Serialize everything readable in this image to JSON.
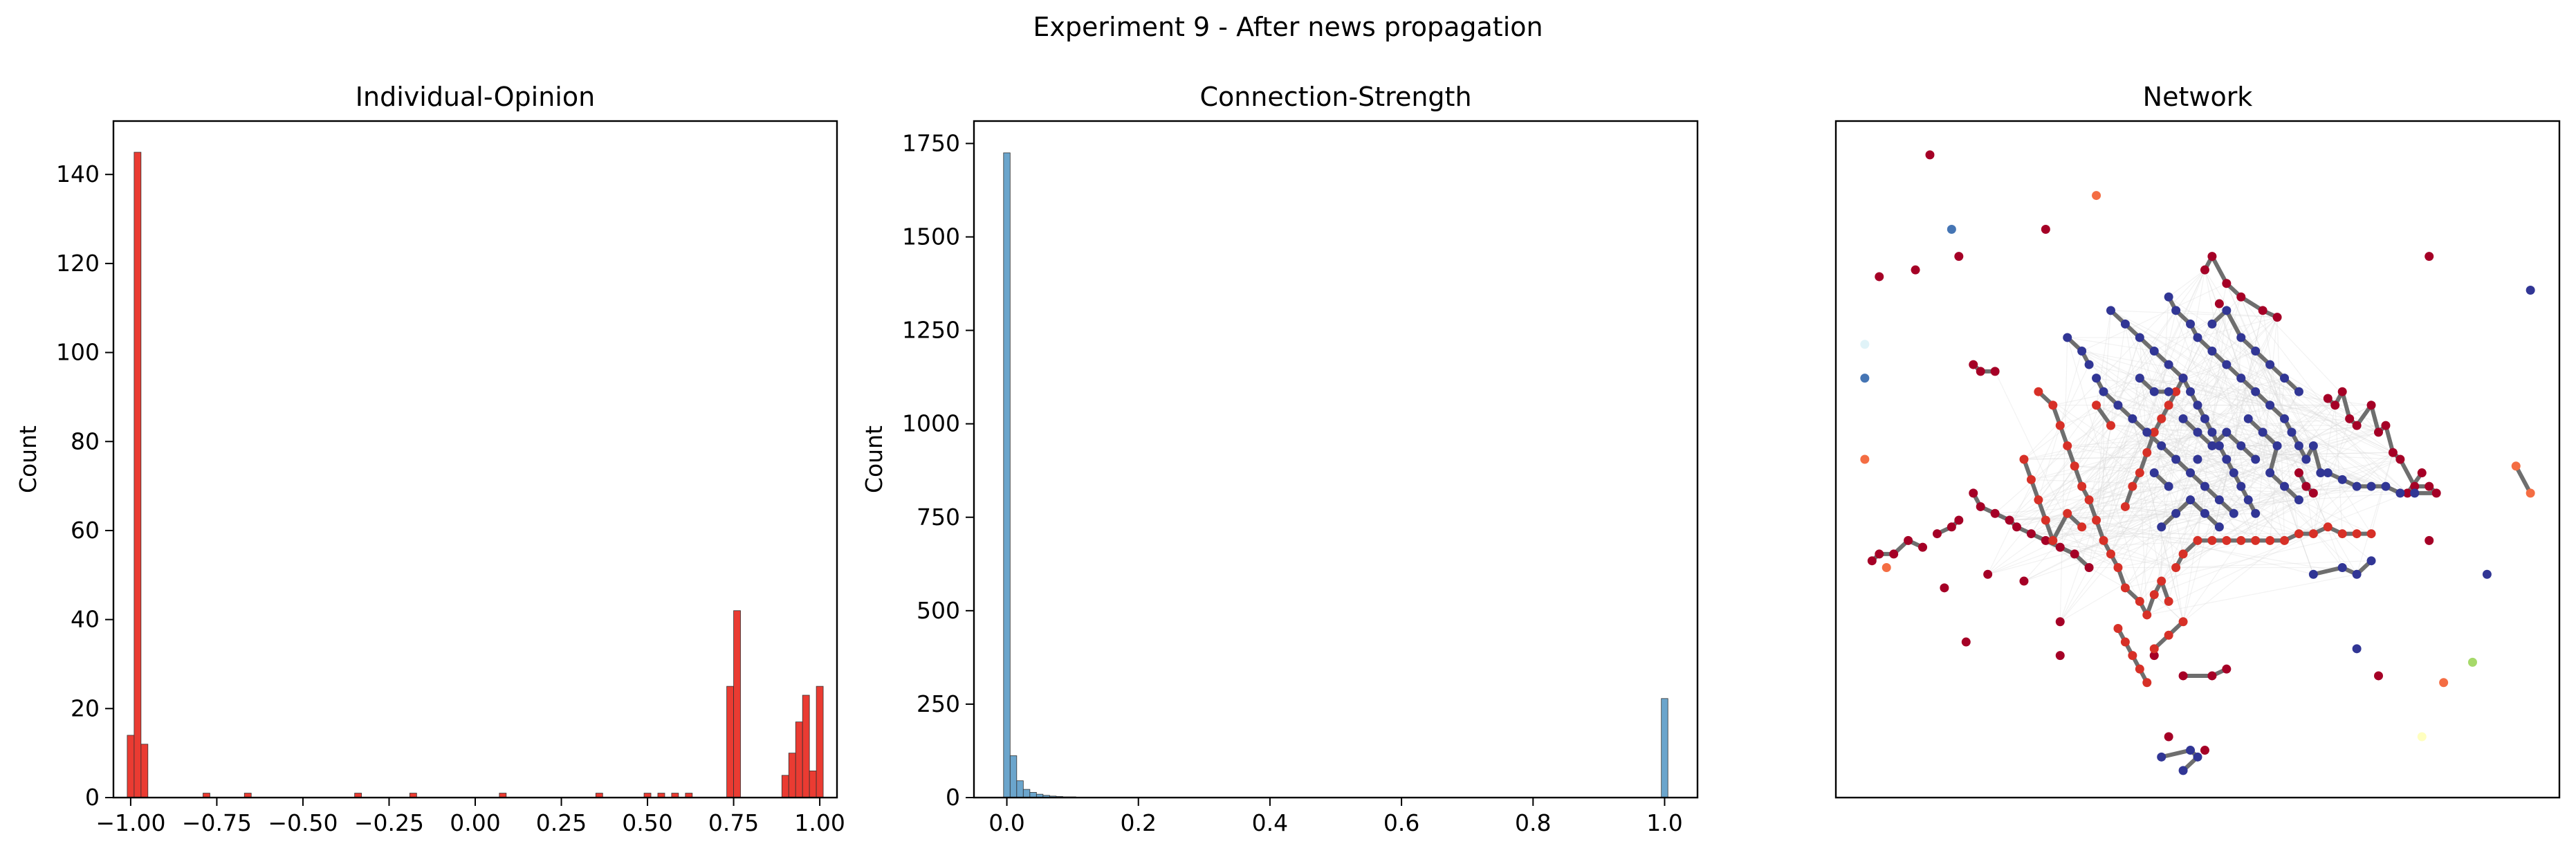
{
  "figure": {
    "suptitle": "Experiment 9 - After news propagation"
  },
  "chart_data": [
    {
      "type": "bar",
      "title": "Individual-Opinion",
      "xlabel": "",
      "ylabel": "Count",
      "xlim": [
        -1.05,
        1.05
      ],
      "ylim": [
        0,
        152
      ],
      "xticks": [
        -1.0,
        -0.75,
        -0.5,
        -0.25,
        0.0,
        0.25,
        0.5,
        0.75,
        1.0
      ],
      "xtick_labels": [
        "−1.00",
        "−0.75",
        "−0.50",
        "−0.25",
        "0.00",
        "0.25",
        "0.50",
        "0.75",
        "1.00"
      ],
      "yticks": [
        0,
        20,
        40,
        60,
        80,
        100,
        120,
        140
      ],
      "ytick_labels": [
        "0",
        "20",
        "40",
        "60",
        "80",
        "100",
        "120",
        "140"
      ],
      "bin_width": 0.02,
      "color": "#e8261c",
      "bins": [
        {
          "x": -1.0,
          "count": 14
        },
        {
          "x": -0.98,
          "count": 145
        },
        {
          "x": -0.96,
          "count": 12
        },
        {
          "x": -0.78,
          "count": 1
        },
        {
          "x": -0.66,
          "count": 1
        },
        {
          "x": -0.34,
          "count": 1
        },
        {
          "x": -0.18,
          "count": 1
        },
        {
          "x": 0.08,
          "count": 1
        },
        {
          "x": 0.36,
          "count": 1
        },
        {
          "x": 0.5,
          "count": 1
        },
        {
          "x": 0.54,
          "count": 1
        },
        {
          "x": 0.58,
          "count": 1
        },
        {
          "x": 0.62,
          "count": 1
        },
        {
          "x": 0.74,
          "count": 25
        },
        {
          "x": 0.76,
          "count": 42
        },
        {
          "x": 0.9,
          "count": 5
        },
        {
          "x": 0.92,
          "count": 10
        },
        {
          "x": 0.94,
          "count": 17
        },
        {
          "x": 0.96,
          "count": 23
        },
        {
          "x": 0.98,
          "count": 6
        },
        {
          "x": 1.0,
          "count": 25
        }
      ]
    },
    {
      "type": "bar",
      "title": "Connection-Strength",
      "xlabel": "",
      "ylabel": "Count",
      "xlim": [
        -0.05,
        1.05
      ],
      "ylim": [
        0,
        1810
      ],
      "xticks": [
        0.0,
        0.2,
        0.4,
        0.6,
        0.8,
        1.0
      ],
      "xtick_labels": [
        "0.0",
        "0.2",
        "0.4",
        "0.6",
        "0.8",
        "1.0"
      ],
      "yticks": [
        0,
        250,
        500,
        750,
        1000,
        1250,
        1500,
        1750
      ],
      "ytick_labels": [
        "0",
        "250",
        "500",
        "750",
        "1000",
        "1250",
        "1500",
        "1750"
      ],
      "bin_width": 0.01,
      "color": "#5b9bc7",
      "bins": [
        {
          "x": 0.0,
          "count": 1725
        },
        {
          "x": 0.01,
          "count": 112
        },
        {
          "x": 0.02,
          "count": 45
        },
        {
          "x": 0.03,
          "count": 22
        },
        {
          "x": 0.04,
          "count": 14
        },
        {
          "x": 0.05,
          "count": 9
        },
        {
          "x": 0.06,
          "count": 6
        },
        {
          "x": 0.07,
          "count": 4
        },
        {
          "x": 0.08,
          "count": 3
        },
        {
          "x": 0.09,
          "count": 2
        },
        {
          "x": 0.1,
          "count": 2
        },
        {
          "x": 0.11,
          "count": 1
        },
        {
          "x": 0.12,
          "count": 1
        },
        {
          "x": 1.0,
          "count": 265
        }
      ]
    },
    {
      "type": "scatter",
      "title": "Network",
      "xlabel": "",
      "ylabel": "",
      "xlim": [
        0,
        100
      ],
      "ylim": [
        0,
        100
      ],
      "xticks": [],
      "yticks": [],
      "note_axes": "node layout positions in network-plot units",
      "series": [
        {
          "name": "",
          "color": "#a50026",
          "points": [
            [
              13,
              95
            ],
            [
              29,
              84
            ],
            [
              11,
              78
            ],
            [
              17,
              80
            ],
            [
              6,
              77
            ],
            [
              51,
              78
            ],
            [
              52,
              80
            ],
            [
              54,
              76
            ],
            [
              56,
              74
            ],
            [
              59,
              72
            ],
            [
              61,
              71
            ],
            [
              53,
              73
            ],
            [
              19,
              64
            ],
            [
              20,
              63
            ],
            [
              22,
              63
            ],
            [
              68,
              59
            ],
            [
              69,
              58
            ],
            [
              70,
              60
            ],
            [
              71,
              56
            ],
            [
              72,
              55
            ],
            [
              74,
              58
            ],
            [
              75,
              54
            ],
            [
              76,
              55
            ],
            [
              77,
              51
            ],
            [
              78,
              50
            ],
            [
              80,
              46
            ],
            [
              82,
              46
            ],
            [
              83,
              45
            ],
            [
              79,
              45
            ],
            [
              81,
              48
            ],
            [
              64,
              48
            ],
            [
              65,
              46
            ],
            [
              66,
              45
            ],
            [
              14,
              39
            ],
            [
              16,
              40
            ],
            [
              17,
              41
            ],
            [
              5,
              35
            ],
            [
              6,
              36
            ],
            [
              8,
              36
            ],
            [
              10,
              38
            ],
            [
              12,
              37
            ],
            [
              19,
              45
            ],
            [
              20,
              43
            ],
            [
              22,
              42
            ],
            [
              24,
              41
            ],
            [
              25,
              40
            ],
            [
              27,
              39
            ],
            [
              29,
              38
            ],
            [
              31,
              37
            ],
            [
              33,
              36
            ],
            [
              35,
              34
            ],
            [
              15,
              31
            ],
            [
              21,
              33
            ],
            [
              26,
              32
            ],
            [
              18,
              23
            ],
            [
              31,
              21
            ],
            [
              44,
              21
            ],
            [
              48,
              18
            ],
            [
              52,
              18
            ],
            [
              54,
              19
            ],
            [
              75,
              18
            ],
            [
              82,
              80
            ],
            [
              82,
              38
            ],
            [
              31,
              26
            ],
            [
              46,
              9
            ],
            [
              51,
              7
            ]
          ]
        },
        {
          "name": "",
          "color": "#d73027",
          "points": [
            [
              28,
              60
            ],
            [
              30,
              58
            ],
            [
              31,
              55
            ],
            [
              32,
              52
            ],
            [
              33,
              49
            ],
            [
              34,
              46
            ],
            [
              35,
              44
            ],
            [
              36,
              41
            ],
            [
              37,
              38
            ],
            [
              38,
              36
            ],
            [
              39,
              34
            ],
            [
              40,
              31
            ],
            [
              42,
              29
            ],
            [
              43,
              27
            ],
            [
              44,
              30
            ],
            [
              45,
              32
            ],
            [
              46,
              29
            ],
            [
              47,
              34
            ],
            [
              48,
              36
            ],
            [
              50,
              38
            ],
            [
              52,
              38
            ],
            [
              54,
              38
            ],
            [
              56,
              38
            ],
            [
              58,
              38
            ],
            [
              60,
              38
            ],
            [
              62,
              38
            ],
            [
              64,
              39
            ],
            [
              66,
              39
            ],
            [
              68,
              40
            ],
            [
              70,
              39
            ],
            [
              72,
              39
            ],
            [
              74,
              39
            ],
            [
              40,
              43
            ],
            [
              41,
              46
            ],
            [
              42,
              48
            ],
            [
              43,
              51
            ],
            [
              44,
              54
            ],
            [
              45,
              56
            ],
            [
              46,
              58
            ],
            [
              47,
              60
            ],
            [
              48,
              62
            ],
            [
              36,
              58
            ],
            [
              38,
              55
            ],
            [
              26,
              50
            ],
            [
              27,
              47
            ],
            [
              28,
              44
            ],
            [
              29,
              41
            ],
            [
              30,
              38
            ],
            [
              32,
              42
            ],
            [
              34,
              40
            ],
            [
              39,
              25
            ],
            [
              40,
              23
            ],
            [
              41,
              21
            ],
            [
              42,
              19
            ],
            [
              43,
              17
            ],
            [
              44,
              22
            ],
            [
              46,
              24
            ],
            [
              48,
              26
            ]
          ]
        },
        {
          "name": "",
          "color": "#313695",
          "points": [
            [
              38,
              72
            ],
            [
              40,
              70
            ],
            [
              42,
              68
            ],
            [
              44,
              66
            ],
            [
              46,
              64
            ],
            [
              48,
              62
            ],
            [
              49,
              60
            ],
            [
              50,
              58
            ],
            [
              51,
              56
            ],
            [
              52,
              54
            ],
            [
              53,
              52
            ],
            [
              54,
              50
            ],
            [
              55,
              48
            ],
            [
              56,
              46
            ],
            [
              57,
              44
            ],
            [
              58,
              42
            ],
            [
              46,
              74
            ],
            [
              47,
              72
            ],
            [
              49,
              70
            ],
            [
              50,
              68
            ],
            [
              52,
              66
            ],
            [
              54,
              64
            ],
            [
              56,
              62
            ],
            [
              58,
              60
            ],
            [
              60,
              58
            ],
            [
              62,
              56
            ],
            [
              63,
              54
            ],
            [
              64,
              52
            ],
            [
              65,
              50
            ],
            [
              66,
              52
            ],
            [
              67,
              48
            ],
            [
              68,
              48
            ],
            [
              70,
              47
            ],
            [
              72,
              46
            ],
            [
              74,
              46
            ],
            [
              76,
              46
            ],
            [
              78,
              45
            ],
            [
              80,
              45
            ],
            [
              36,
              62
            ],
            [
              37,
              60
            ],
            [
              39,
              58
            ],
            [
              41,
              56
            ],
            [
              43,
              54
            ],
            [
              45,
              52
            ],
            [
              47,
              50
            ],
            [
              49,
              48
            ],
            [
              51,
              46
            ],
            [
              53,
              44
            ],
            [
              55,
              42
            ],
            [
              45,
              40
            ],
            [
              47,
              42
            ],
            [
              49,
              44
            ],
            [
              51,
              42
            ],
            [
              53,
              40
            ],
            [
              57,
              56
            ],
            [
              59,
              54
            ],
            [
              61,
              52
            ],
            [
              60,
              48
            ],
            [
              62,
              46
            ],
            [
              64,
              44
            ],
            [
              48,
              56
            ],
            [
              50,
              54
            ],
            [
              52,
              52
            ],
            [
              54,
              54
            ],
            [
              56,
              52
            ],
            [
              58,
              50
            ],
            [
              42,
              62
            ],
            [
              44,
              60
            ],
            [
              46,
              60
            ],
            [
              52,
              70
            ],
            [
              54,
              72
            ],
            [
              56,
              68
            ],
            [
              58,
              66
            ],
            [
              60,
              64
            ],
            [
              62,
              62
            ],
            [
              64,
              60
            ],
            [
              44,
              48
            ],
            [
              46,
              46
            ],
            [
              50,
              50
            ],
            [
              32,
              68
            ],
            [
              34,
              66
            ],
            [
              35,
              64
            ],
            [
              66,
              33
            ],
            [
              70,
              34
            ],
            [
              72,
              33
            ],
            [
              74,
              35
            ],
            [
              96,
              75
            ],
            [
              90,
              33
            ],
            [
              72,
              22
            ],
            [
              45,
              6
            ],
            [
              49,
              7
            ],
            [
              50,
              6
            ],
            [
              48,
              4
            ]
          ]
        },
        {
          "name": "",
          "color": "#f46d43",
          "points": [
            [
              36,
              89
            ],
            [
              4,
              50
            ],
            [
              7,
              34
            ],
            [
              84,
              17
            ],
            [
              94,
              49
            ],
            [
              96,
              45
            ]
          ]
        },
        {
          "name": "",
          "color": "#4575b4",
          "points": [
            [
              16,
              84
            ],
            [
              4,
              62
            ]
          ]
        },
        {
          "name": "",
          "color": "#a6d96a",
          "points": [
            [
              88,
              20
            ]
          ]
        },
        {
          "name": "",
          "color": "#ffffbf",
          "points": [
            [
              81,
              9
            ]
          ]
        },
        {
          "name": "",
          "color": "#e0f3f8",
          "points": [
            [
              4,
              67
            ]
          ]
        }
      ]
    }
  ]
}
